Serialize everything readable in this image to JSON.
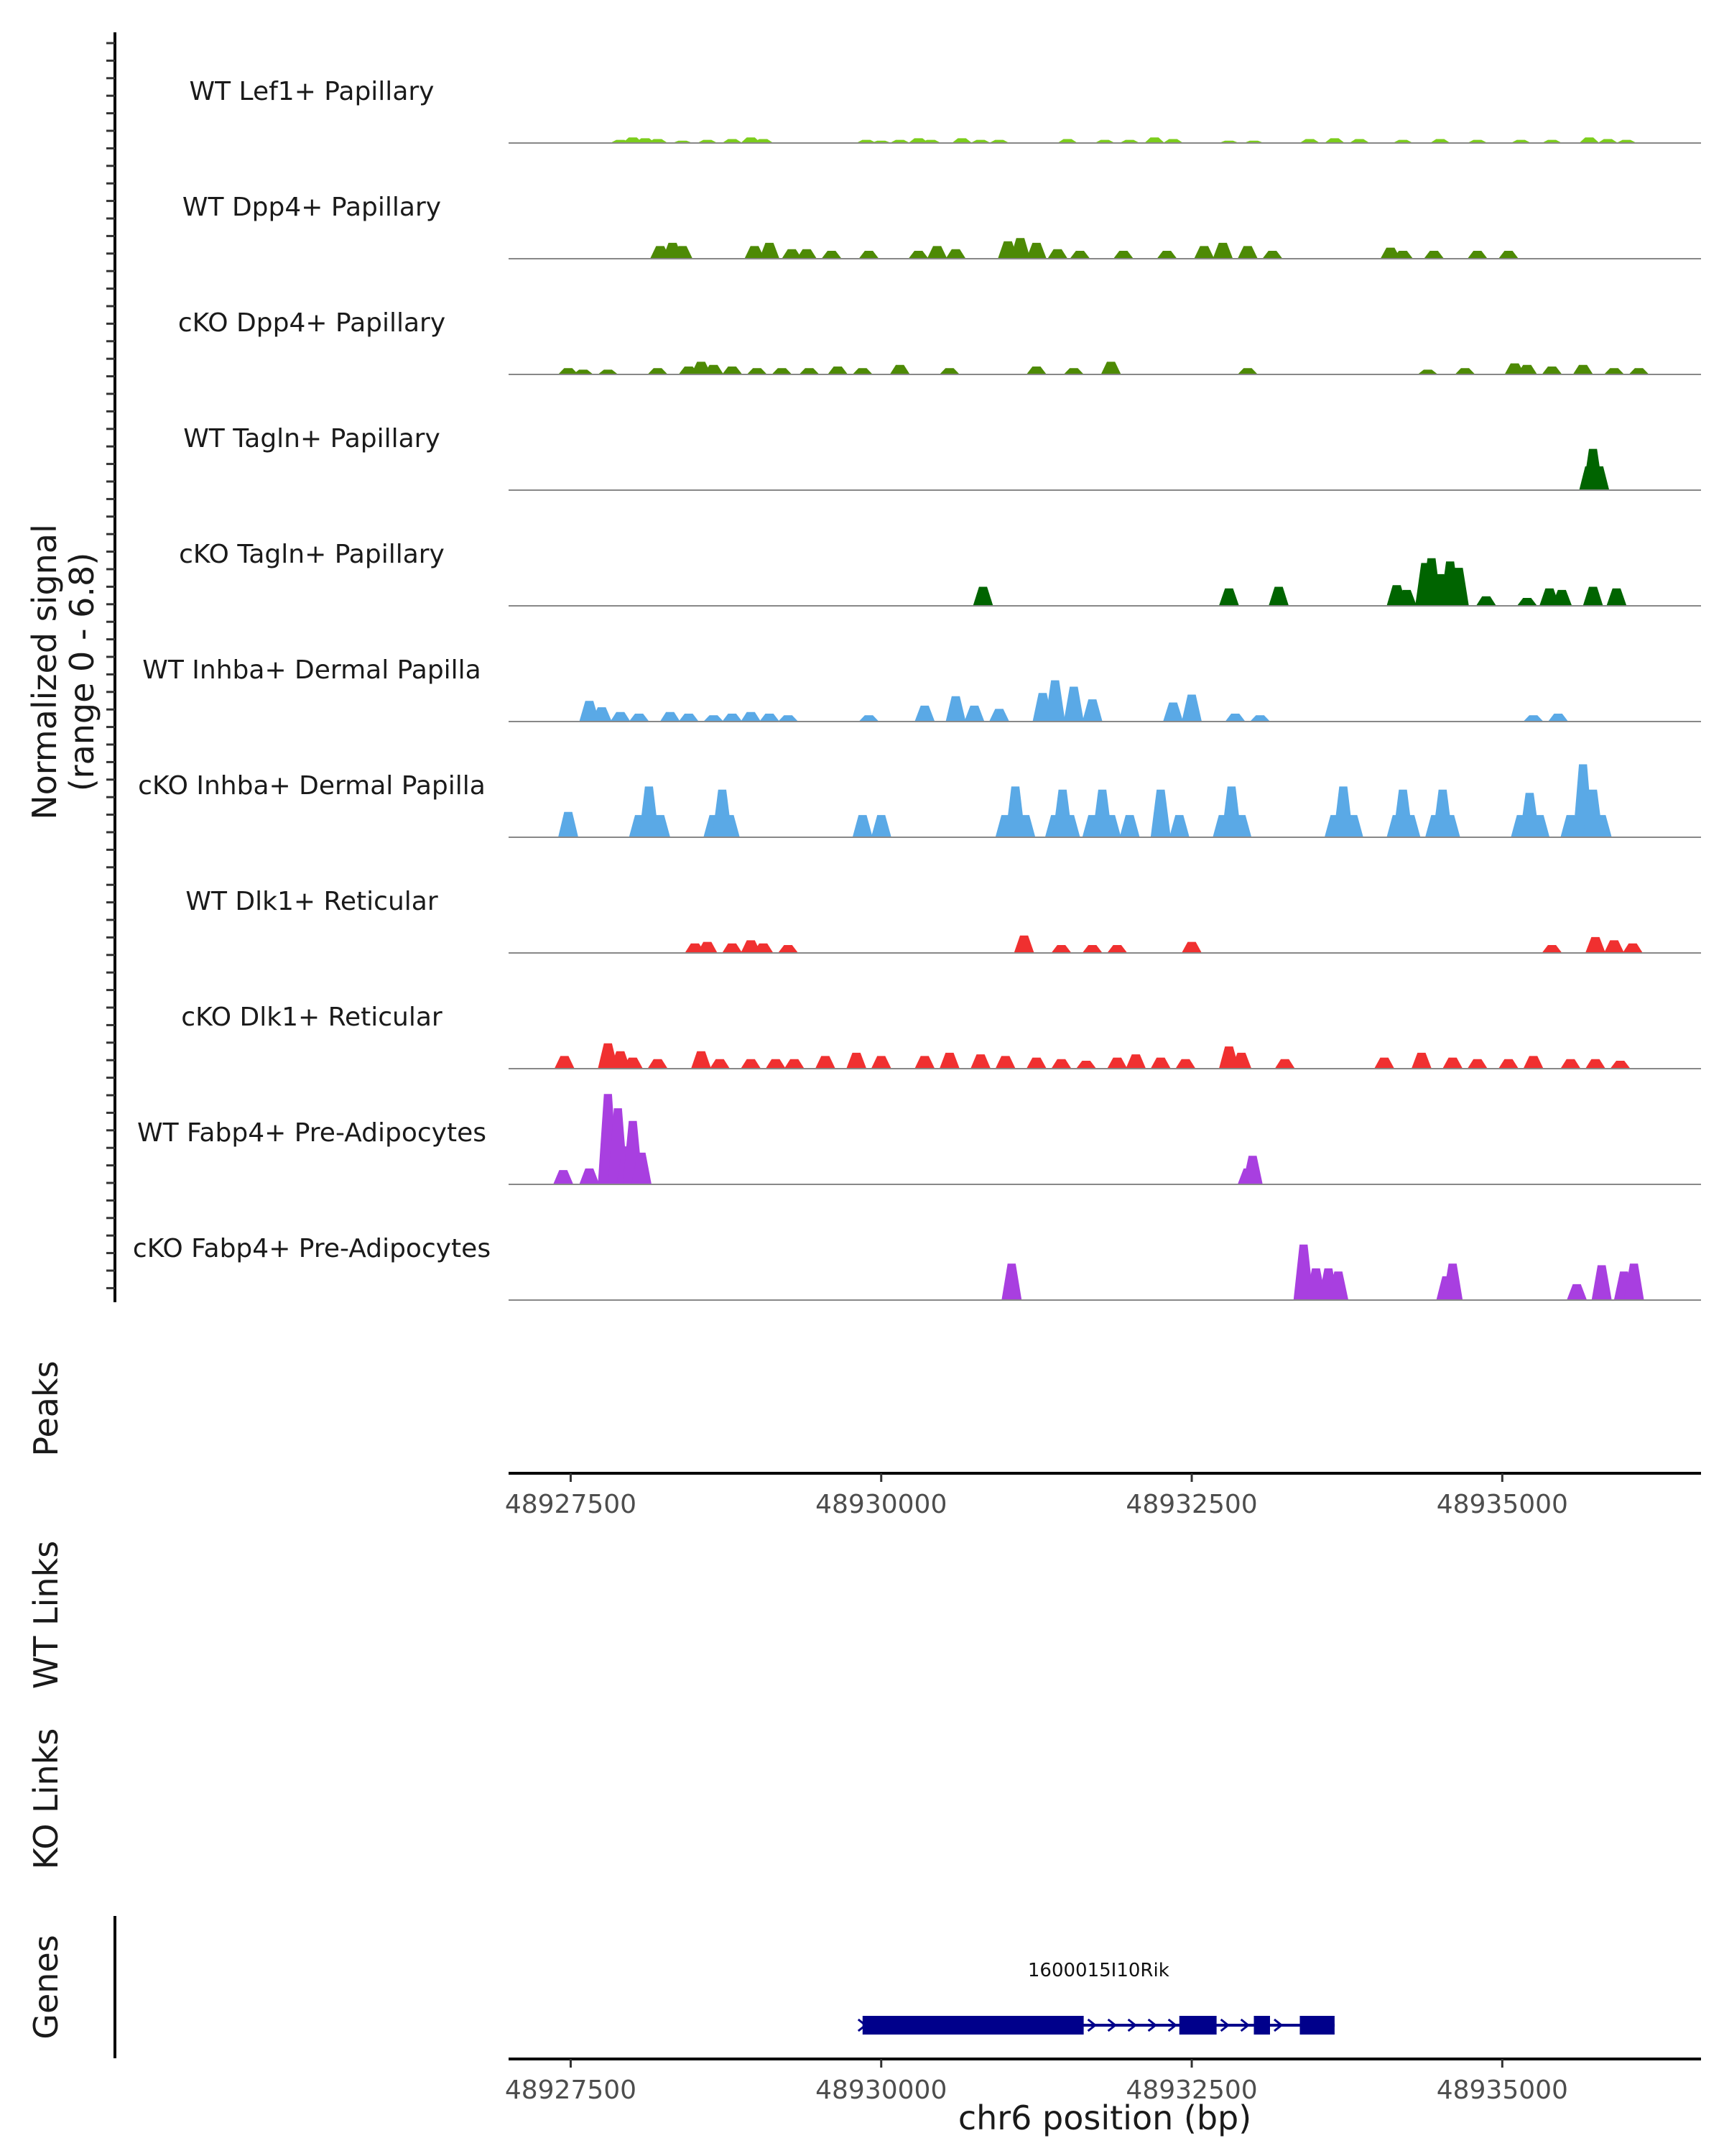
{
  "chart_data": {
    "type": "area",
    "title": "",
    "xlabel": "chr6 position (bp)",
    "xlim": [
      48927000,
      48936600
    ],
    "ylim": [
      0,
      6.8
    ],
    "x_ticks": [
      "48927500",
      "48930000",
      "48932500",
      "48935000"
    ],
    "coverage_ylabel": "Normalized signal",
    "coverage_range_label": "(range 0 - 6.8)",
    "peaks_label": "Peaks",
    "wt_links_label": "WT Links",
    "ko_links_label": "KO Links",
    "genes_label": "Genes",
    "gene": {
      "name": "1600015I10Rik",
      "start": 48929850,
      "end": 48933650,
      "strand": "+",
      "exons": [
        [
          48929850,
          48931630
        ],
        [
          48932400,
          48932700
        ],
        [
          48933000,
          48933130
        ],
        [
          48933370,
          48933650
        ]
      ]
    },
    "series": [
      {
        "name": "WT Lef1+ Papillary",
        "color": "#7CCD1C",
        "points": [
          [
            48927900,
            0.2
          ],
          [
            48928000,
            0.35
          ],
          [
            48928100,
            0.3
          ],
          [
            48928200,
            0.25
          ],
          [
            48928400,
            0.15
          ],
          [
            48928600,
            0.2
          ],
          [
            48928800,
            0.25
          ],
          [
            48928950,
            0.35
          ],
          [
            48929050,
            0.25
          ],
          [
            48929880,
            0.2
          ],
          [
            48930000,
            0.15
          ],
          [
            48930150,
            0.2
          ],
          [
            48930300,
            0.3
          ],
          [
            48930400,
            0.2
          ],
          [
            48930650,
            0.3
          ],
          [
            48930800,
            0.2
          ],
          [
            48930950,
            0.2
          ],
          [
            48931500,
            0.25
          ],
          [
            48931800,
            0.2
          ],
          [
            48932000,
            0.2
          ],
          [
            48932200,
            0.35
          ],
          [
            48932350,
            0.25
          ],
          [
            48932800,
            0.15
          ],
          [
            48933000,
            0.15
          ],
          [
            48933450,
            0.25
          ],
          [
            48933650,
            0.3
          ],
          [
            48933850,
            0.25
          ],
          [
            48934200,
            0.2
          ],
          [
            48934500,
            0.25
          ],
          [
            48934800,
            0.2
          ],
          [
            48935150,
            0.2
          ],
          [
            48935400,
            0.2
          ],
          [
            48935700,
            0.35
          ],
          [
            48935850,
            0.25
          ],
          [
            48936000,
            0.2
          ]
        ]
      },
      {
        "name": "WT Dpp4+ Papillary",
        "color": "#4D8A05",
        "points": [
          [
            48928220,
            0.8
          ],
          [
            48928320,
            1.0
          ],
          [
            48928400,
            0.8
          ],
          [
            48928980,
            0.8
          ],
          [
            48929100,
            1.0
          ],
          [
            48929280,
            0.6
          ],
          [
            48929400,
            0.6
          ],
          [
            48929600,
            0.5
          ],
          [
            48929900,
            0.5
          ],
          [
            48930300,
            0.5
          ],
          [
            48930450,
            0.8
          ],
          [
            48930600,
            0.6
          ],
          [
            48931020,
            1.1
          ],
          [
            48931120,
            1.3
          ],
          [
            48931250,
            1.0
          ],
          [
            48931420,
            0.6
          ],
          [
            48931600,
            0.5
          ],
          [
            48931950,
            0.5
          ],
          [
            48932300,
            0.5
          ],
          [
            48932600,
            0.8
          ],
          [
            48932750,
            1.0
          ],
          [
            48932950,
            0.8
          ],
          [
            48933150,
            0.5
          ],
          [
            48934100,
            0.7
          ],
          [
            48934200,
            0.5
          ],
          [
            48934450,
            0.5
          ],
          [
            48934800,
            0.5
          ],
          [
            48935050,
            0.5
          ]
        ]
      },
      {
        "name": "cKO Dpp4+ Papillary",
        "color": "#4D8A05",
        "points": [
          [
            48927480,
            0.4
          ],
          [
            48927600,
            0.3
          ],
          [
            48927800,
            0.3
          ],
          [
            48928200,
            0.4
          ],
          [
            48928450,
            0.5
          ],
          [
            48928550,
            0.8
          ],
          [
            48928650,
            0.6
          ],
          [
            48928800,
            0.5
          ],
          [
            48929000,
            0.4
          ],
          [
            48929200,
            0.4
          ],
          [
            48929420,
            0.4
          ],
          [
            48929650,
            0.5
          ],
          [
            48929850,
            0.4
          ],
          [
            48930150,
            0.6
          ],
          [
            48930550,
            0.4
          ],
          [
            48931250,
            0.5
          ],
          [
            48931550,
            0.4
          ],
          [
            48931850,
            0.8
          ],
          [
            48932950,
            0.4
          ],
          [
            48934400,
            0.3
          ],
          [
            48934700,
            0.4
          ],
          [
            48935100,
            0.7
          ],
          [
            48935200,
            0.6
          ],
          [
            48935400,
            0.5
          ],
          [
            48935650,
            0.6
          ],
          [
            48935900,
            0.4
          ],
          [
            48936100,
            0.4
          ]
        ]
      },
      {
        "name": "WT Tagln+ Papillary",
        "color": "#006400",
        "points": [
          [
            48935700,
            1.5
          ],
          [
            48935730,
            2.6
          ],
          [
            48935780,
            1.5
          ]
        ]
      },
      {
        "name": "cKO Tagln+ Papillary",
        "color": "#006400",
        "points": [
          [
            48930820,
            1.2
          ],
          [
            48932800,
            1.1
          ],
          [
            48933200,
            1.2
          ],
          [
            48934150,
            1.3
          ],
          [
            48934230,
            1.0
          ],
          [
            48934380,
            2.7
          ],
          [
            48934430,
            3.0
          ],
          [
            48934500,
            2.0
          ],
          [
            48934580,
            2.8
          ],
          [
            48934650,
            2.4
          ],
          [
            48934870,
            0.6
          ],
          [
            48935200,
            0.5
          ],
          [
            48935380,
            1.1
          ],
          [
            48935480,
            1.0
          ],
          [
            48935730,
            1.2
          ],
          [
            48935920,
            1.1
          ]
        ]
      },
      {
        "name": "WT Inhba+ Dermal Papilla",
        "color": "#5AA9E6",
        "points": [
          [
            48927650,
            1.3
          ],
          [
            48927750,
            0.9
          ],
          [
            48927900,
            0.6
          ],
          [
            48928050,
            0.5
          ],
          [
            48928300,
            0.6
          ],
          [
            48928450,
            0.5
          ],
          [
            48928650,
            0.4
          ],
          [
            48928800,
            0.5
          ],
          [
            48928950,
            0.6
          ],
          [
            48929100,
            0.5
          ],
          [
            48929250,
            0.4
          ],
          [
            48929900,
            0.4
          ],
          [
            48930350,
            1.0
          ],
          [
            48930600,
            1.6
          ],
          [
            48930750,
            1.0
          ],
          [
            48930950,
            0.8
          ],
          [
            48931300,
            1.8
          ],
          [
            48931400,
            2.6
          ],
          [
            48931550,
            2.2
          ],
          [
            48931700,
            1.4
          ],
          [
            48932350,
            1.2
          ],
          [
            48932500,
            1.7
          ],
          [
            48932850,
            0.5
          ],
          [
            48933050,
            0.4
          ],
          [
            48935250,
            0.4
          ],
          [
            48935450,
            0.5
          ]
        ]
      },
      {
        "name": "cKO Inhba+ Dermal Papilla",
        "color": "#5AA9E6",
        "points": [
          [
            48927480,
            1.6
          ],
          [
            48928050,
            1.4
          ],
          [
            48928130,
            3.2
          ],
          [
            48928220,
            1.4
          ],
          [
            48928650,
            1.4
          ],
          [
            48928720,
            3.0
          ],
          [
            48928780,
            1.4
          ],
          [
            48929850,
            1.4
          ],
          [
            48930000,
            1.4
          ],
          [
            48931000,
            1.4
          ],
          [
            48931080,
            3.2
          ],
          [
            48931160,
            1.4
          ],
          [
            48931400,
            1.4
          ],
          [
            48931460,
            3.0
          ],
          [
            48931520,
            1.4
          ],
          [
            48931700,
            1.4
          ],
          [
            48931780,
            3.0
          ],
          [
            48931850,
            1.4
          ],
          [
            48932000,
            1.4
          ],
          [
            48932250,
            3.0
          ],
          [
            48932400,
            1.4
          ],
          [
            48932750,
            1.4
          ],
          [
            48932820,
            3.2
          ],
          [
            48932900,
            1.4
          ],
          [
            48933650,
            1.4
          ],
          [
            48933720,
            3.2
          ],
          [
            48933800,
            1.4
          ],
          [
            48934150,
            1.4
          ],
          [
            48934200,
            3.0
          ],
          [
            48934260,
            1.4
          ],
          [
            48934460,
            1.4
          ],
          [
            48934520,
            3.0
          ],
          [
            48934580,
            1.4
          ],
          [
            48935150,
            1.4
          ],
          [
            48935220,
            2.8
          ],
          [
            48935300,
            1.4
          ],
          [
            48935550,
            1.4
          ],
          [
            48935650,
            4.6
          ],
          [
            48935730,
            3.0
          ],
          [
            48935800,
            1.4
          ]
        ]
      },
      {
        "name": "WT Dlk1+ Reticular",
        "color": "#F03030",
        "points": [
          [
            48928500,
            0.6
          ],
          [
            48928600,
            0.7
          ],
          [
            48928800,
            0.6
          ],
          [
            48928950,
            0.8
          ],
          [
            48929050,
            0.6
          ],
          [
            48929250,
            0.5
          ],
          [
            48931150,
            1.1
          ],
          [
            48931450,
            0.5
          ],
          [
            48931700,
            0.5
          ],
          [
            48931900,
            0.5
          ],
          [
            48932500,
            0.7
          ],
          [
            48935400,
            0.5
          ],
          [
            48935750,
            1.0
          ],
          [
            48935900,
            0.8
          ],
          [
            48936050,
            0.6
          ]
        ]
      },
      {
        "name": "cKO Dlk1+ Reticular",
        "color": "#F03030",
        "points": [
          [
            48927450,
            0.8
          ],
          [
            48927800,
            1.6
          ],
          [
            48927900,
            1.1
          ],
          [
            48928000,
            0.7
          ],
          [
            48928200,
            0.6
          ],
          [
            48928550,
            1.1
          ],
          [
            48928700,
            0.6
          ],
          [
            48928950,
            0.6
          ],
          [
            48929150,
            0.6
          ],
          [
            48929300,
            0.6
          ],
          [
            48929550,
            0.8
          ],
          [
            48929800,
            1.0
          ],
          [
            48930000,
            0.8
          ],
          [
            48930350,
            0.8
          ],
          [
            48930550,
            1.0
          ],
          [
            48930800,
            0.9
          ],
          [
            48931000,
            0.8
          ],
          [
            48931250,
            0.7
          ],
          [
            48931450,
            0.6
          ],
          [
            48931650,
            0.5
          ],
          [
            48931900,
            0.7
          ],
          [
            48932050,
            0.9
          ],
          [
            48932250,
            0.7
          ],
          [
            48932450,
            0.6
          ],
          [
            48932800,
            1.4
          ],
          [
            48932900,
            1.0
          ],
          [
            48933250,
            0.6
          ],
          [
            48934050,
            0.7
          ],
          [
            48934350,
            1.0
          ],
          [
            48934600,
            0.7
          ],
          [
            48934800,
            0.6
          ],
          [
            48935050,
            0.6
          ],
          [
            48935250,
            0.8
          ],
          [
            48935550,
            0.6
          ],
          [
            48935750,
            0.6
          ],
          [
            48935950,
            0.5
          ]
        ]
      },
      {
        "name": "WT Fabp4+ Pre-Adipocytes",
        "color": "#A83FE0",
        "points": [
          [
            48927440,
            0.9
          ],
          [
            48927650,
            1.0
          ],
          [
            48927800,
            5.7
          ],
          [
            48927880,
            4.8
          ],
          [
            48927950,
            2.4
          ],
          [
            48928000,
            4.0
          ],
          [
            48928070,
            2.0
          ],
          [
            48932950,
            1.0
          ],
          [
            48932990,
            1.8
          ]
        ]
      },
      {
        "name": "cKO Fabp4+ Pre-Adipocytes",
        "color": "#A83FE0",
        "points": [
          [
            48931050,
            2.3
          ],
          [
            48933400,
            3.5
          ],
          [
            48933500,
            2.0
          ],
          [
            48933600,
            2.0
          ],
          [
            48933680,
            1.8
          ],
          [
            48934550,
            1.5
          ],
          [
            48934600,
            2.3
          ],
          [
            48935600,
            1.0
          ],
          [
            48935800,
            2.2
          ],
          [
            48935980,
            1.8
          ],
          [
            48936060,
            2.3
          ]
        ]
      }
    ]
  }
}
